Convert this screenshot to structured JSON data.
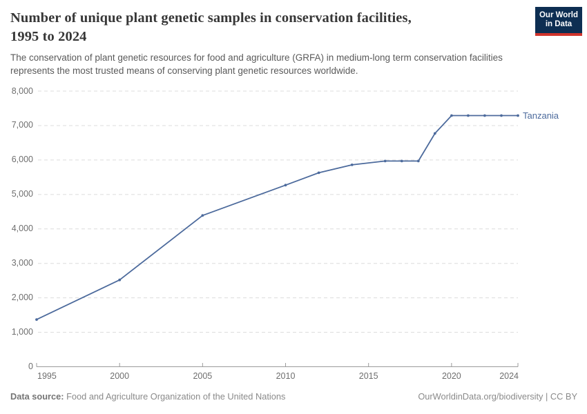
{
  "header": {
    "title_lines": [
      "Number of unique plant genetic samples in conservation facilities,",
      "1995 to 2024"
    ],
    "subtitle_lines": [
      "The conservation of plant genetic resources for food and agriculture (GRFA) in medium-long term conservation facilities",
      "represents the most trusted means of conserving plant genetic resources worldwide."
    ],
    "logo": {
      "line1": "Our World",
      "line2": "in Data",
      "bg_color": "#0d2e52",
      "accent_color": "#d0342c"
    }
  },
  "chart_data": {
    "type": "line",
    "title": "Number of unique plant genetic samples in conservation facilities, 1995 to 2024",
    "xlabel": "",
    "ylabel": "",
    "x": [
      1995,
      2000,
      2005,
      2010,
      2012,
      2014,
      2016,
      2017,
      2018,
      2019,
      2020,
      2021,
      2022,
      2023,
      2024
    ],
    "series": [
      {
        "name": "Tanzania",
        "color": "#4C6A9C",
        "values": [
          1370,
          2520,
          4390,
          5270,
          5630,
          5860,
          5970,
          5970,
          5970,
          6770,
          7290,
          7290,
          7290,
          7290,
          7290
        ]
      }
    ],
    "x_ticks": [
      1995,
      2000,
      2005,
      2010,
      2015,
      2020,
      2024
    ],
    "y_ticks": [
      0,
      1000,
      2000,
      3000,
      4000,
      5000,
      6000,
      7000,
      8000
    ],
    "xlim": [
      1995,
      2024
    ],
    "ylim": [
      0,
      8000
    ],
    "grid": "horizontal-dashed",
    "legend": "end-of-line-label",
    "grid_color": "#dcdcdc",
    "axis_color": "#9a9a9a",
    "tick_label_color": "#6e6e6e"
  },
  "footer": {
    "datasource_label": "Data source:",
    "datasource_value": "Food and Agriculture Organization of the United Nations",
    "credit": "OurWorldinData.org/biodiversity | CC BY"
  }
}
